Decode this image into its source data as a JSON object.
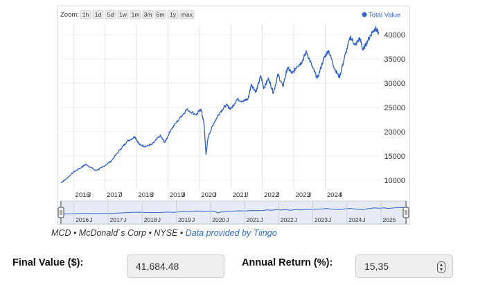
{
  "zoom": {
    "label": "Zoom:",
    "buttons": [
      "1h",
      "1d",
      "5d",
      "1w",
      "1m",
      "3m",
      "6m",
      "1y",
      "max"
    ]
  },
  "legend": {
    "series_name": "Total Value",
    "color": "#3060c8"
  },
  "chart_data": {
    "type": "line",
    "series": [
      {
        "name": "Total Value",
        "points": [
          [
            2015.6,
            9500
          ],
          [
            2015.75,
            10200
          ],
          [
            2016.0,
            11700
          ],
          [
            2016.25,
            12700
          ],
          [
            2016.4,
            13300
          ],
          [
            2016.7,
            12000
          ],
          [
            2016.9,
            12600
          ],
          [
            2017.2,
            14000
          ],
          [
            2017.5,
            16500
          ],
          [
            2017.7,
            18000
          ],
          [
            2017.95,
            19000
          ],
          [
            2018.1,
            17300
          ],
          [
            2018.3,
            17000
          ],
          [
            2018.5,
            17400
          ],
          [
            2018.75,
            19200
          ],
          [
            2018.9,
            17800
          ],
          [
            2019.1,
            20500
          ],
          [
            2019.4,
            23000
          ],
          [
            2019.6,
            24600
          ],
          [
            2019.9,
            23500
          ],
          [
            2020.05,
            24700
          ],
          [
            2020.15,
            21500
          ],
          [
            2020.21,
            15300
          ],
          [
            2020.28,
            19000
          ],
          [
            2020.45,
            21700
          ],
          [
            2020.65,
            24000
          ],
          [
            2020.85,
            25500
          ],
          [
            2021.0,
            24700
          ],
          [
            2021.2,
            26700
          ],
          [
            2021.4,
            26300
          ],
          [
            2021.55,
            26800
          ],
          [
            2021.65,
            29800
          ],
          [
            2021.8,
            28200
          ],
          [
            2021.95,
            31500
          ],
          [
            2022.05,
            29000
          ],
          [
            2022.2,
            31000
          ],
          [
            2022.35,
            28000
          ],
          [
            2022.5,
            31800
          ],
          [
            2022.65,
            29300
          ],
          [
            2022.8,
            33200
          ],
          [
            2022.95,
            32000
          ],
          [
            2023.1,
            33500
          ],
          [
            2023.25,
            34300
          ],
          [
            2023.4,
            36500
          ],
          [
            2023.6,
            33200
          ],
          [
            2023.75,
            31000
          ],
          [
            2023.95,
            35000
          ],
          [
            2024.1,
            36800
          ],
          [
            2024.3,
            33000
          ],
          [
            2024.45,
            31200
          ],
          [
            2024.6,
            35000
          ],
          [
            2024.8,
            39600
          ],
          [
            2024.95,
            37800
          ],
          [
            2025.1,
            39300
          ],
          [
            2025.2,
            36800
          ],
          [
            2025.35,
            38800
          ],
          [
            2025.5,
            40600
          ],
          [
            2025.6,
            41300
          ],
          [
            2025.7,
            40200
          ]
        ]
      }
    ],
    "y_ticks": [
      10000,
      15000,
      20000,
      25000,
      30000,
      35000,
      40000
    ],
    "x_year_labels": [
      "2016",
      "2017",
      "2018",
      "2019",
      "2020",
      "2021",
      "2022",
      "2023",
      "2024"
    ],
    "x_mid_labels": [
      "J",
      "J",
      "J",
      "J",
      "J",
      "J",
      "J",
      "J",
      "J",
      "J"
    ],
    "x_range": [
      2015.6,
      2025.75
    ],
    "y_range": [
      9000,
      42000
    ],
    "grid": true,
    "legend_position": "top-right",
    "navigator": {
      "year_labels": [
        "2016",
        "2017",
        "2018",
        "2019",
        "2020",
        "2021",
        "2022",
        "2023",
        "2024",
        "2025"
      ],
      "mid_labels": [
        "J",
        "J",
        "J",
        "J",
        "J",
        "J",
        "J",
        "J",
        "J",
        "J"
      ]
    }
  },
  "caption": {
    "prefix": "MCD • McDonald`s Corp • NYSE • ",
    "link": "Data provided by Tiingo"
  },
  "fields": {
    "final_value": {
      "label": "Final Value ($):",
      "value": "41,684.48"
    },
    "annual_return": {
      "label": "Annual Return (%):",
      "value": "15,35"
    }
  }
}
